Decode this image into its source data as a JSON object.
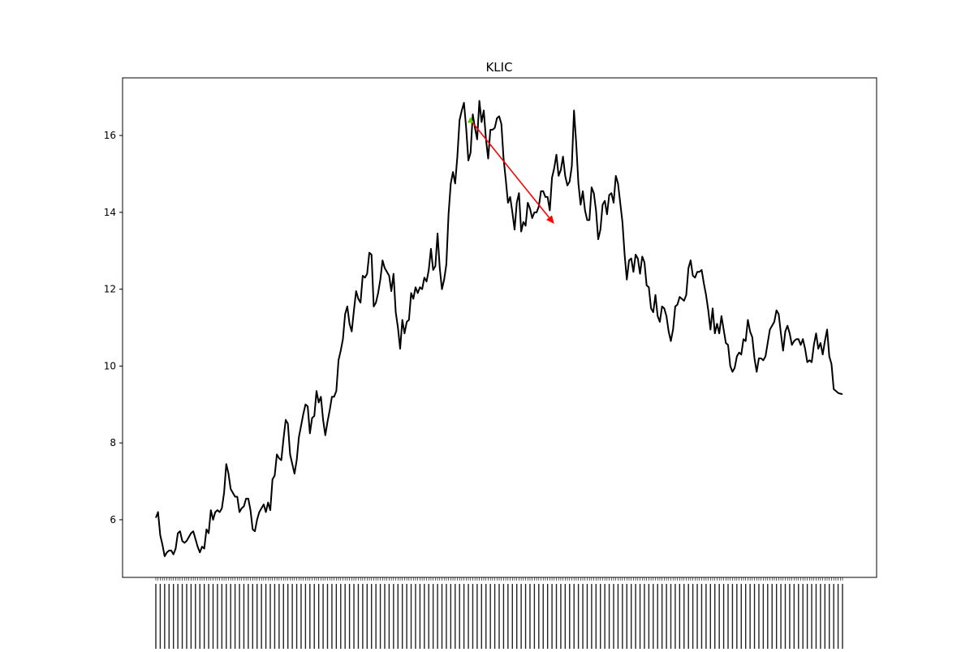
{
  "chart_data": {
    "type": "line",
    "title": "KLIC",
    "xlabel": "",
    "ylabel": "",
    "ylim": [
      4.5,
      17.5
    ],
    "yticks": [
      6,
      8,
      10,
      12,
      14,
      16
    ],
    "grid": false,
    "legend": "none",
    "x_tick_labels_note": "",
    "series": [
      {
        "color": "#000000",
        "values": [
          6.05,
          6.2,
          5.6,
          5.35,
          5.05,
          5.15,
          5.2,
          5.2,
          5.1,
          5.25,
          5.65,
          5.7,
          5.45,
          5.4,
          5.45,
          5.55,
          5.65,
          5.7,
          5.5,
          5.3,
          5.15,
          5.3,
          5.25,
          5.75,
          5.65,
          6.25,
          6.0,
          6.2,
          6.25,
          6.2,
          6.3,
          6.7,
          7.45,
          7.2,
          6.8,
          6.7,
          6.6,
          6.6,
          6.2,
          6.3,
          6.35,
          6.55,
          6.55,
          6.25,
          5.75,
          5.7,
          6.0,
          6.2,
          6.3,
          6.4,
          6.2,
          6.45,
          6.25,
          7.05,
          7.15,
          7.7,
          7.6,
          7.55,
          8.1,
          8.6,
          8.5,
          7.7,
          7.45,
          7.2,
          7.55,
          8.15,
          8.45,
          8.75,
          9.0,
          8.95,
          8.25,
          8.65,
          8.7,
          9.35,
          9.05,
          9.2,
          8.6,
          8.2,
          8.55,
          8.85,
          9.2,
          9.2,
          9.35,
          10.15,
          10.4,
          10.7,
          11.35,
          11.55,
          11.1,
          10.9,
          11.45,
          11.95,
          11.75,
          11.65,
          12.35,
          12.3,
          12.4,
          12.95,
          12.9,
          11.55,
          11.65,
          11.9,
          12.25,
          12.75,
          12.55,
          12.45,
          12.35,
          11.95,
          12.4,
          11.4,
          11.0,
          10.45,
          11.2,
          10.85,
          11.15,
          11.2,
          11.9,
          11.75,
          12.05,
          11.9,
          12.05,
          12.0,
          12.3,
          12.2,
          12.5,
          13.05,
          12.5,
          12.6,
          13.45,
          12.55,
          12.0,
          12.25,
          12.65,
          13.95,
          14.75,
          15.05,
          14.75,
          15.45,
          16.4,
          16.65,
          16.85,
          16.2,
          15.35,
          15.55,
          16.55,
          16.2,
          15.9,
          16.9,
          16.35,
          16.65,
          15.9,
          15.4,
          16.15,
          16.15,
          16.2,
          16.45,
          16.5,
          16.3,
          15.4,
          14.85,
          14.25,
          14.4,
          14.0,
          13.55,
          14.25,
          14.5,
          13.5,
          13.75,
          13.65,
          14.25,
          14.1,
          13.85,
          14.0,
          14.0,
          14.15,
          14.55,
          14.55,
          14.4,
          14.4,
          14.05,
          14.9,
          15.15,
          15.5,
          14.95,
          15.1,
          15.45,
          14.95,
          14.7,
          14.8,
          15.2,
          16.65,
          15.8,
          14.75,
          14.2,
          14.55,
          14.05,
          13.8,
          13.8,
          14.65,
          14.5,
          14.05,
          13.3,
          13.55,
          14.2,
          14.3,
          13.95,
          14.45,
          14.5,
          14.25,
          14.95,
          14.75,
          14.25,
          13.75,
          12.9,
          12.25,
          12.75,
          12.8,
          12.45,
          12.9,
          12.8,
          12.4,
          12.85,
          12.7,
          12.1,
          12.05,
          11.5,
          11.4,
          11.85,
          11.3,
          11.15,
          11.55,
          11.5,
          11.3,
          10.9,
          10.65,
          10.95,
          11.55,
          11.6,
          11.8,
          11.75,
          11.7,
          11.85,
          12.55,
          12.75,
          12.35,
          12.3,
          12.45,
          12.45,
          12.5,
          12.15,
          11.85,
          11.45,
          10.95,
          11.5,
          10.85,
          11.1,
          10.85,
          11.3,
          10.95,
          10.6,
          10.55,
          10.0,
          9.85,
          9.95,
          10.25,
          10.35,
          10.3,
          10.7,
          10.65,
          11.2,
          10.9,
          10.75,
          10.2,
          9.85,
          10.2,
          10.2,
          10.15,
          10.25,
          10.6,
          10.95,
          11.05,
          11.15,
          11.45,
          11.35,
          10.85,
          10.4,
          10.9,
          11.05,
          10.85,
          10.55,
          10.65,
          10.7,
          10.7,
          10.55,
          10.7,
          10.45,
          10.1,
          10.15,
          10.1,
          10.55,
          10.85,
          10.45,
          10.6,
          10.3,
          10.65,
          10.95,
          10.25,
          10.05,
          9.4,
          9.35,
          9.3,
          9.28,
          9.27
        ]
      }
    ],
    "annotations": [
      {
        "type": "arrow",
        "color": "#ff0000",
        "start_marker_color": "#66cc00",
        "from": {
          "index": 143,
          "value": 16.4
        },
        "to": {
          "index": 181,
          "value": 13.7
        }
      }
    ]
  },
  "colors": {
    "line": "#000000",
    "arrow": "#ff0000",
    "start_marker": "#66cc00",
    "background": "#ffffff"
  }
}
